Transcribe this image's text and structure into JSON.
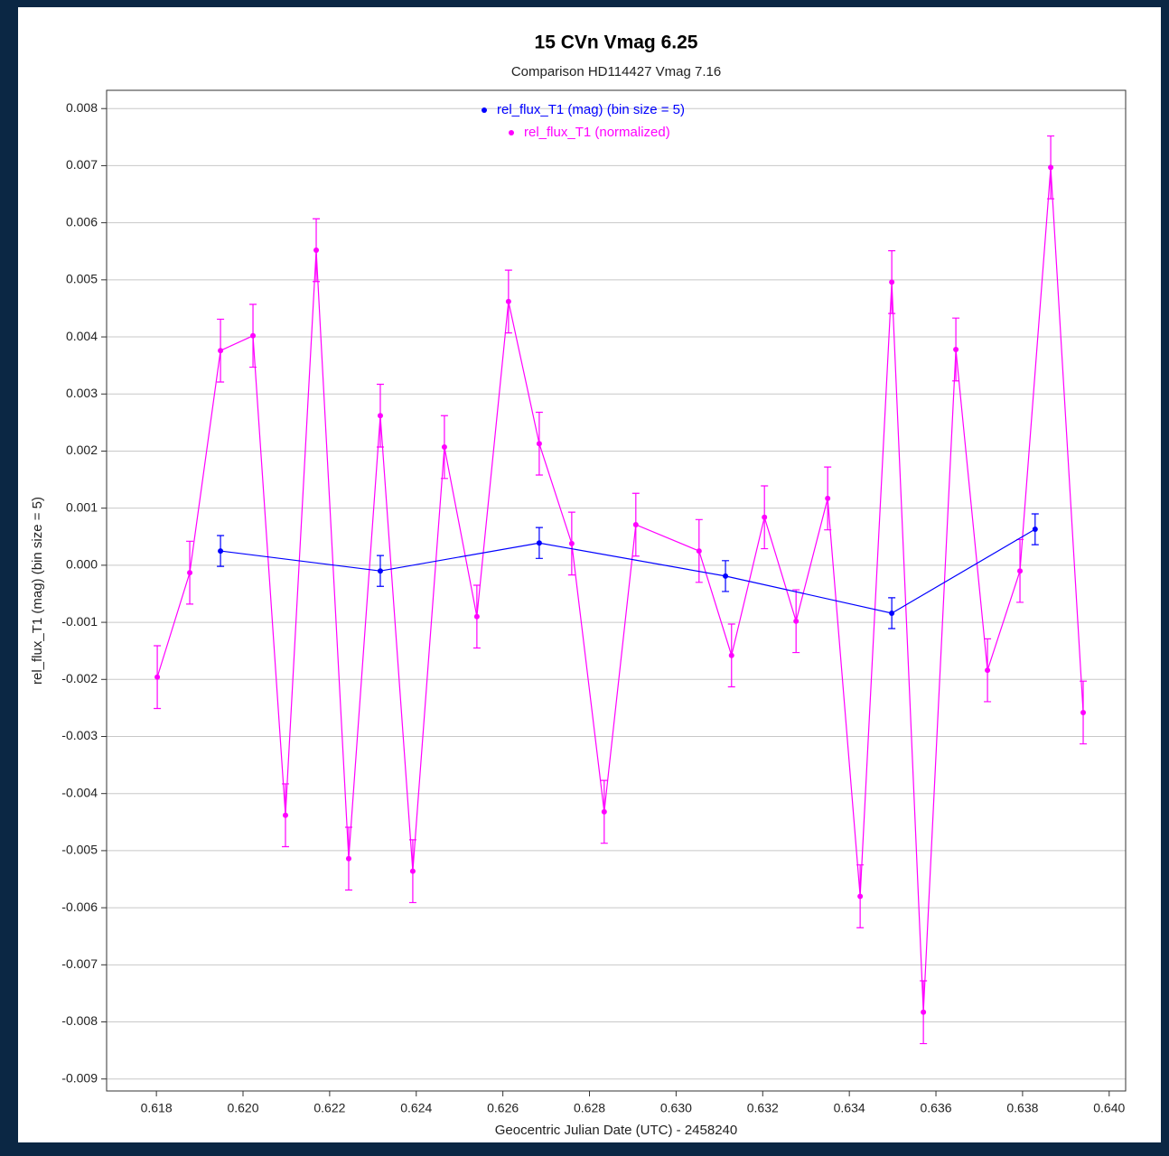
{
  "chart_data": {
    "type": "line",
    "title": "15 CVn Vmag 6.25",
    "subtitle": "Comparison HD114427 Vmag 7.16",
    "x_label": "Geocentric Julian Date (UTC) - 2458240",
    "y_label": "rel_flux_T1 (mag) (bin size = 5)",
    "xlim": [
      0.61685,
      0.64038
    ],
    "ylim": [
      -0.00921,
      0.00832
    ],
    "xticks": [
      0.618,
      {
        "value": 0.62,
        "label": "0.620"
      },
      0.622,
      0.624,
      0.626,
      0.628,
      {
        "value": 0.63,
        "label": "0.630"
      },
      0.632,
      0.634,
      0.636,
      0.638,
      {
        "value": 0.64,
        "label": "0.640"
      }
    ],
    "yticks": [
      -0.009,
      -0.008,
      -0.007,
      -0.006,
      -0.005,
      -0.004,
      -0.003,
      -0.002,
      -0.001,
      {
        "value": 0,
        "label": "0.000"
      },
      0.001,
      0.002,
      0.003,
      0.004,
      0.005,
      0.006,
      0.007,
      0.008
    ],
    "grid": "y",
    "legend": "top",
    "series": [
      {
        "name": "rel_flux_T1 (normalized)",
        "color": "#ff00ff",
        "x": [
          0.61802,
          0.61877,
          0.61948,
          0.62023,
          0.62098,
          0.62169,
          0.62244,
          0.62317,
          0.62392,
          0.62465,
          0.6254,
          0.62613,
          0.62684,
          0.62759,
          0.62834,
          0.62907,
          0.63053,
          0.63128,
          0.63204,
          0.63277,
          0.6335,
          0.63425,
          0.63498,
          0.63571,
          0.63646,
          0.63719,
          0.63794,
          0.63865,
          0.6394
        ],
        "values": [
          -0.00196,
          -0.00013,
          0.00376,
          0.00402,
          -0.00438,
          0.00552,
          -0.00514,
          0.00262,
          -0.00536,
          0.00207,
          -0.0009,
          0.00462,
          0.00213,
          0.00038,
          -0.00432,
          0.00071,
          0.00025,
          -0.00158,
          0.00084,
          -0.00098,
          0.00117,
          -0.0058,
          0.00496,
          -0.00783,
          0.00378,
          -0.00184,
          -0.0001,
          0.00697,
          -0.00258
        ],
        "errors": [
          0.00055,
          0.00055,
          0.00055,
          0.00055,
          0.00055,
          0.00055,
          0.00055,
          0.00055,
          0.00055,
          0.00055,
          0.00055,
          0.00055,
          0.00055,
          0.00055,
          0.00055,
          0.00055,
          0.00055,
          0.00055,
          0.00055,
          0.00055,
          0.00055,
          0.00055,
          0.00055,
          0.00055,
          0.00055,
          0.00055,
          0.00055,
          0.00055,
          0.00055
        ]
      },
      {
        "name": "rel_flux_T1 (mag) (bin size = 5)",
        "color": "#0000ff",
        "x": [
          0.61948,
          0.62317,
          0.62684,
          0.63114,
          0.63498,
          0.63829
        ],
        "values": [
          0.00025,
          -0.0001,
          0.00039,
          -0.00019,
          -0.00084,
          0.00063
        ],
        "errors": [
          0.00027,
          0.00027,
          0.00027,
          0.00027,
          0.00027,
          0.00027
        ]
      }
    ]
  }
}
